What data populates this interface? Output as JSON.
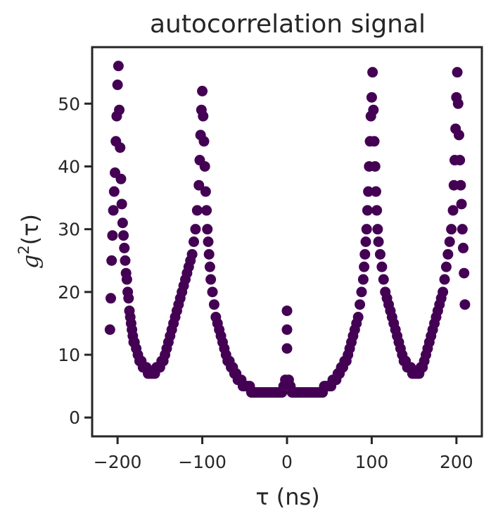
{
  "chart_data": {
    "type": "scatter",
    "title": "autocorrelation signal",
    "xlabel": "τ (ns)",
    "ylabel": {
      "symbol": "g",
      "superscript": "2",
      "suffix": "(τ)"
    },
    "xlim": [
      -230,
      230
    ],
    "ylim": [
      -3,
      59
    ],
    "xticks": [
      -200,
      -100,
      0,
      100,
      200
    ],
    "xtick_labels": [
      "−200",
      "−100",
      "0",
      "100",
      "200"
    ],
    "yticks": [
      0,
      10,
      20,
      30,
      40,
      50
    ],
    "ytick_labels": [
      "0",
      "10",
      "20",
      "30",
      "40",
      "50"
    ],
    "grid": false,
    "legend": "none",
    "marker_color": "#440154",
    "peaks": [
      {
        "center": -200,
        "height": 55
      },
      {
        "center": -100,
        "height": 51
      },
      {
        "center": 0,
        "height": 17
      },
      {
        "center": 100,
        "height": 55
      },
      {
        "center": 200,
        "height": 55
      }
    ],
    "points": [
      [
        -209,
        14
      ],
      [
        -208,
        19
      ],
      [
        -207,
        25
      ],
      [
        -206,
        29
      ],
      [
        -205,
        33
      ],
      [
        -204,
        36
      ],
      [
        -203,
        39
      ],
      [
        -202,
        44
      ],
      [
        -201,
        48
      ],
      [
        -200,
        53
      ],
      [
        -199,
        56
      ],
      [
        -198,
        49
      ],
      [
        -197,
        43
      ],
      [
        -196,
        38
      ],
      [
        -195,
        34
      ],
      [
        -194,
        31
      ],
      [
        -193,
        29
      ],
      [
        -192,
        27
      ],
      [
        -191,
        25
      ],
      [
        -190,
        23
      ],
      [
        -189,
        22
      ],
      [
        -188,
        20
      ],
      [
        -187,
        19
      ],
      [
        -186,
        17
      ],
      [
        -185,
        16
      ],
      [
        -184,
        15
      ],
      [
        -183,
        14
      ],
      [
        -182,
        13
      ],
      [
        -181,
        12
      ],
      [
        -180,
        12
      ],
      [
        -178,
        11
      ],
      [
        -176,
        10
      ],
      [
        -174,
        9
      ],
      [
        -172,
        9
      ],
      [
        -170,
        8
      ],
      [
        -168,
        8
      ],
      [
        -166,
        8
      ],
      [
        -164,
        7
      ],
      [
        -162,
        7
      ],
      [
        -160,
        7
      ],
      [
        -158,
        7
      ],
      [
        -156,
        7
      ],
      [
        -154,
        8
      ],
      [
        -152,
        8
      ],
      [
        -150,
        8
      ],
      [
        -148,
        9
      ],
      [
        -146,
        9
      ],
      [
        -144,
        10
      ],
      [
        -142,
        11
      ],
      [
        -140,
        12
      ],
      [
        -138,
        13
      ],
      [
        -136,
        14
      ],
      [
        -134,
        15
      ],
      [
        -132,
        16
      ],
      [
        -130,
        17
      ],
      [
        -128,
        18
      ],
      [
        -126,
        19
      ],
      [
        -124,
        20
      ],
      [
        -122,
        21
      ],
      [
        -120,
        22
      ],
      [
        -118,
        23
      ],
      [
        -116,
        24
      ],
      [
        -114,
        25
      ],
      [
        -112,
        26
      ],
      [
        -110,
        28
      ],
      [
        -108,
        30
      ],
      [
        -106,
        33
      ],
      [
        -104,
        37
      ],
      [
        -103,
        41
      ],
      [
        -102,
        45
      ],
      [
        -101,
        49
      ],
      [
        -100,
        52
      ],
      [
        -99,
        48
      ],
      [
        -98,
        44
      ],
      [
        -97,
        40
      ],
      [
        -96,
        36
      ],
      [
        -95,
        33
      ],
      [
        -94,
        30
      ],
      [
        -93,
        28
      ],
      [
        -92,
        26
      ],
      [
        -91,
        24
      ],
      [
        -90,
        22
      ],
      [
        -88,
        20
      ],
      [
        -86,
        18
      ],
      [
        -84,
        16
      ],
      [
        -82,
        15
      ],
      [
        -80,
        14
      ],
      [
        -78,
        13
      ],
      [
        -76,
        12
      ],
      [
        -74,
        11
      ],
      [
        -72,
        10
      ],
      [
        -70,
        9
      ],
      [
        -68,
        9
      ],
      [
        -66,
        8
      ],
      [
        -64,
        8
      ],
      [
        -62,
        7
      ],
      [
        -60,
        7
      ],
      [
        -58,
        6
      ],
      [
        -56,
        6
      ],
      [
        -54,
        6
      ],
      [
        -52,
        5
      ],
      [
        -50,
        5
      ],
      [
        -48,
        5
      ],
      [
        -46,
        5
      ],
      [
        -44,
        5
      ],
      [
        -42,
        4
      ],
      [
        -40,
        4
      ],
      [
        -38,
        4
      ],
      [
        -36,
        4
      ],
      [
        -34,
        4
      ],
      [
        -32,
        4
      ],
      [
        -30,
        4
      ],
      [
        -28,
        4
      ],
      [
        -26,
        4
      ],
      [
        -24,
        4
      ],
      [
        -22,
        4
      ],
      [
        -20,
        4
      ],
      [
        -18,
        4
      ],
      [
        -16,
        4
      ],
      [
        -14,
        4
      ],
      [
        -12,
        4
      ],
      [
        -10,
        4
      ],
      [
        -8,
        4
      ],
      [
        -6,
        4
      ],
      [
        -4,
        5
      ],
      [
        -2,
        6
      ],
      [
        0,
        17
      ],
      [
        0,
        14
      ],
      [
        0,
        11
      ],
      [
        2,
        6
      ],
      [
        4,
        5
      ],
      [
        6,
        4
      ],
      [
        8,
        4
      ],
      [
        10,
        4
      ],
      [
        12,
        4
      ],
      [
        14,
        4
      ],
      [
        16,
        4
      ],
      [
        18,
        4
      ],
      [
        20,
        4
      ],
      [
        22,
        4
      ],
      [
        24,
        4
      ],
      [
        26,
        4
      ],
      [
        28,
        4
      ],
      [
        30,
        4
      ],
      [
        32,
        4
      ],
      [
        34,
        4
      ],
      [
        36,
        4
      ],
      [
        38,
        4
      ],
      [
        40,
        4
      ],
      [
        42,
        4
      ],
      [
        44,
        5
      ],
      [
        46,
        5
      ],
      [
        48,
        5
      ],
      [
        50,
        5
      ],
      [
        52,
        5
      ],
      [
        54,
        6
      ],
      [
        56,
        6
      ],
      [
        58,
        6
      ],
      [
        60,
        7
      ],
      [
        62,
        7
      ],
      [
        64,
        8
      ],
      [
        66,
        8
      ],
      [
        68,
        9
      ],
      [
        70,
        9
      ],
      [
        72,
        10
      ],
      [
        74,
        11
      ],
      [
        76,
        12
      ],
      [
        78,
        13
      ],
      [
        80,
        14
      ],
      [
        82,
        15
      ],
      [
        84,
        16
      ],
      [
        86,
        18
      ],
      [
        88,
        20
      ],
      [
        90,
        22
      ],
      [
        91,
        24
      ],
      [
        92,
        26
      ],
      [
        93,
        28
      ],
      [
        94,
        30
      ],
      [
        95,
        33
      ],
      [
        96,
        36
      ],
      [
        97,
        40
      ],
      [
        98,
        44
      ],
      [
        99,
        48
      ],
      [
        100,
        51
      ],
      [
        101,
        55
      ],
      [
        102,
        49
      ],
      [
        103,
        44
      ],
      [
        104,
        40
      ],
      [
        105,
        36
      ],
      [
        106,
        33
      ],
      [
        107,
        30
      ],
      [
        108,
        28
      ],
      [
        110,
        26
      ],
      [
        112,
        24
      ],
      [
        114,
        22
      ],
      [
        116,
        20
      ],
      [
        118,
        19
      ],
      [
        120,
        18
      ],
      [
        122,
        17
      ],
      [
        124,
        16
      ],
      [
        126,
        15
      ],
      [
        128,
        14
      ],
      [
        130,
        13
      ],
      [
        132,
        12
      ],
      [
        134,
        11
      ],
      [
        136,
        10
      ],
      [
        138,
        9
      ],
      [
        140,
        9
      ],
      [
        142,
        8
      ],
      [
        144,
        8
      ],
      [
        146,
        8
      ],
      [
        148,
        7
      ],
      [
        150,
        7
      ],
      [
        152,
        7
      ],
      [
        154,
        7
      ],
      [
        156,
        7
      ],
      [
        158,
        8
      ],
      [
        160,
        8
      ],
      [
        162,
        9
      ],
      [
        164,
        10
      ],
      [
        166,
        11
      ],
      [
        168,
        12
      ],
      [
        170,
        13
      ],
      [
        172,
        14
      ],
      [
        174,
        15
      ],
      [
        176,
        16
      ],
      [
        178,
        17
      ],
      [
        180,
        18
      ],
      [
        182,
        19
      ],
      [
        184,
        20
      ],
      [
        186,
        22
      ],
      [
        188,
        24
      ],
      [
        190,
        26
      ],
      [
        192,
        28
      ],
      [
        194,
        30
      ],
      [
        196,
        33
      ],
      [
        197,
        37
      ],
      [
        198,
        41
      ],
      [
        199,
        46
      ],
      [
        200,
        51
      ],
      [
        201,
        55
      ],
      [
        202,
        50
      ],
      [
        203,
        45
      ],
      [
        204,
        41
      ],
      [
        205,
        37
      ],
      [
        206,
        34
      ],
      [
        207,
        30
      ],
      [
        208,
        27
      ],
      [
        209,
        23
      ],
      [
        210,
        18
      ]
    ]
  }
}
